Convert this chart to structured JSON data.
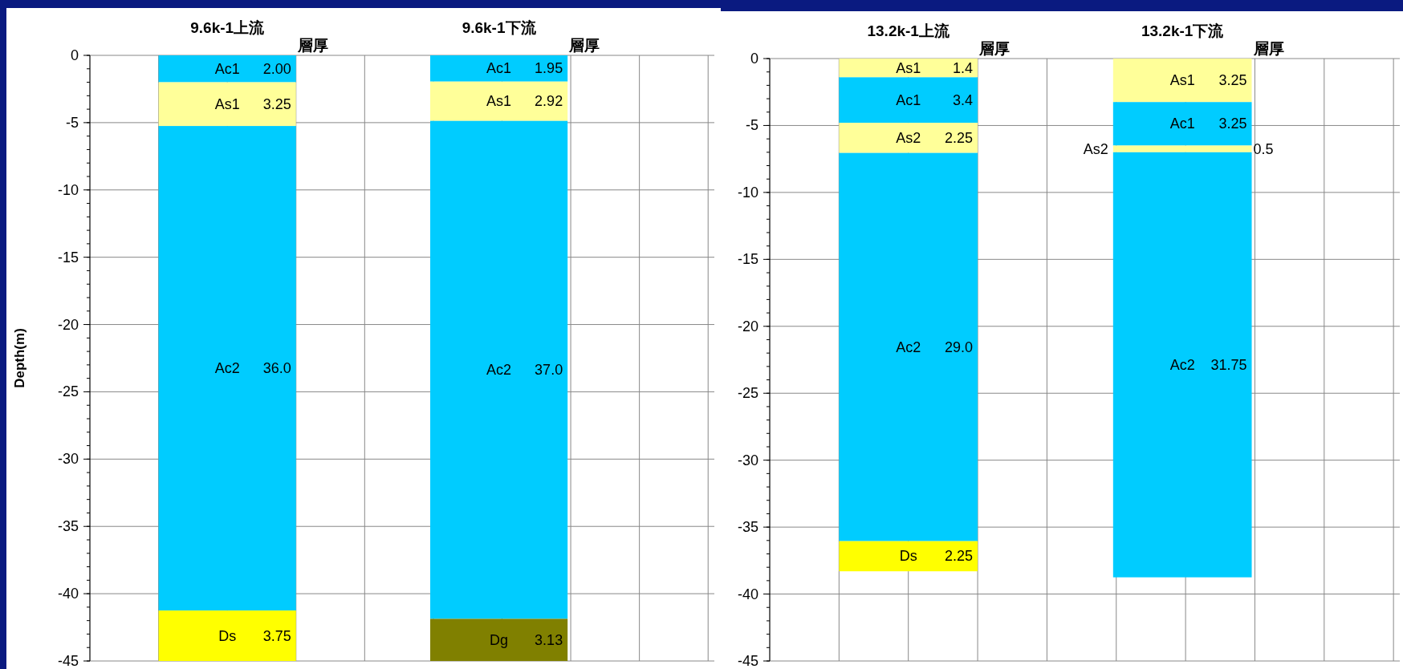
{
  "chart_data": [
    {
      "type": "bar",
      "categories": [
        "9.6k-1上流",
        "9.6k-1下流"
      ],
      "ylabel": "Depth(m)",
      "ylim": [
        -45,
        0
      ],
      "yticks": [
        0,
        -5,
        -10,
        -15,
        -20,
        -25,
        -30,
        -35,
        -40,
        -45
      ],
      "grid": true,
      "annotations": [
        "層厚",
        "層厚"
      ],
      "series": [
        {
          "name": "Ac1",
          "color": "#00ccff",
          "values": [
            2.0,
            1.95
          ],
          "base": [
            -2.0,
            -1.95
          ],
          "value_labels": [
            "2.00",
            "1.95"
          ]
        },
        {
          "name": "As1",
          "color": "#ffff99",
          "values": [
            3.25,
            2.92
          ],
          "base": [
            -5.25,
            -4.87
          ],
          "value_labels": [
            "3.25",
            "2.92"
          ]
        },
        {
          "name": "Ac2",
          "color": "#00ccff",
          "values": [
            36.0,
            37.0
          ],
          "base": [
            -41.25,
            -41.87
          ],
          "value_labels": [
            "36.0",
            "37.0"
          ]
        },
        {
          "name": "Ds",
          "color": "#ffff00",
          "values": [
            3.75,
            null
          ],
          "base": [
            -45,
            null
          ],
          "value_labels": [
            "3.75",
            null
          ]
        },
        {
          "name": "Dg",
          "color": "#808000",
          "values": [
            null,
            3.13
          ],
          "base": [
            null,
            -45
          ],
          "value_labels": [
            null,
            "3.13"
          ]
        }
      ]
    },
    {
      "type": "bar",
      "categories": [
        "13.2k-1上流",
        "13.2k-1下流"
      ],
      "ylim": [
        -45,
        0
      ],
      "yticks": [
        0,
        -5,
        -10,
        -15,
        -20,
        -25,
        -30,
        -35,
        -40,
        -45
      ],
      "grid": true,
      "annotations": [
        "層厚",
        "層厚"
      ],
      "series": [
        {
          "name": "As1",
          "color": "#ffff99",
          "values": [
            1.4,
            3.25
          ],
          "base": [
            -1.4,
            -3.25
          ],
          "value_labels": [
            "1.4",
            "3.25"
          ]
        },
        {
          "name": "Ac1",
          "color": "#00ccff",
          "values": [
            3.4,
            3.25
          ],
          "base": [
            -4.8,
            -6.5
          ],
          "value_labels": [
            "3.4",
            "3.25"
          ]
        },
        {
          "name": "As2",
          "color": "#ffff99",
          "values": [
            2.25,
            0.5
          ],
          "base": [
            -7.05,
            -7.0
          ],
          "value_labels": [
            "2.25",
            "0.5"
          ]
        },
        {
          "name": "Ac2",
          "color": "#00ccff",
          "values": [
            29.0,
            31.75
          ],
          "base": [
            -36.05,
            -38.75
          ],
          "value_labels": [
            "29.0",
            "31.75"
          ]
        },
        {
          "name": "Ds",
          "color": "#ffff00",
          "values": [
            2.25,
            null
          ],
          "base": [
            -38.3,
            null
          ],
          "value_labels": [
            "2.25",
            null
          ]
        }
      ]
    }
  ]
}
